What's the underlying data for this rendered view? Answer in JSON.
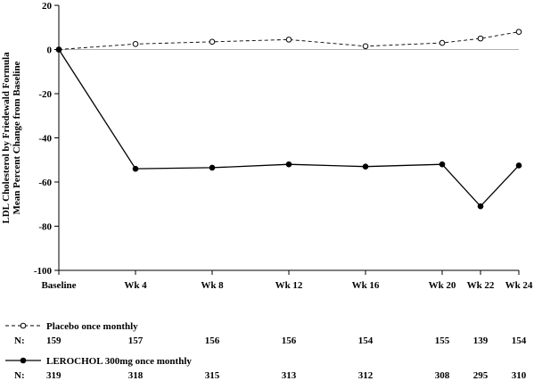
{
  "chart_data": {
    "type": "line",
    "ylabel_lines": [
      "LDL Cholesterol by Friedewald Formula",
      "Mean Percent Change from Baseline"
    ],
    "xlabel": "",
    "categories": [
      "Baseline",
      "Wk 4",
      "Wk 8",
      "Wk 12",
      "Wk 16",
      "Wk 20",
      "Wk 22",
      "Wk 24"
    ],
    "weeks": [
      0,
      4,
      8,
      12,
      16,
      20,
      22,
      24
    ],
    "ylim": [
      -100,
      20
    ],
    "yticks": [
      20,
      0,
      -20,
      -40,
      -60,
      -80,
      -100
    ],
    "grid": false,
    "reference_line_y": 0,
    "series": [
      {
        "name": "Placebo once monthly",
        "values": [
          0,
          2.5,
          3.5,
          4.5,
          1.5,
          3,
          5,
          8
        ],
        "style": "dashed",
        "marker": "open-circle",
        "n_label": "N:",
        "n": [
          159,
          157,
          156,
          156,
          154,
          155,
          139,
          154
        ]
      },
      {
        "name": "LEROCHOL 300mg once monthly",
        "values": [
          0,
          -54,
          -53.5,
          -52,
          -53,
          -52,
          -71,
          -52.5
        ],
        "style": "solid",
        "marker": "filled-circle",
        "n_label": "N:",
        "n": [
          319,
          318,
          315,
          313,
          312,
          308,
          295,
          310
        ]
      }
    ]
  }
}
